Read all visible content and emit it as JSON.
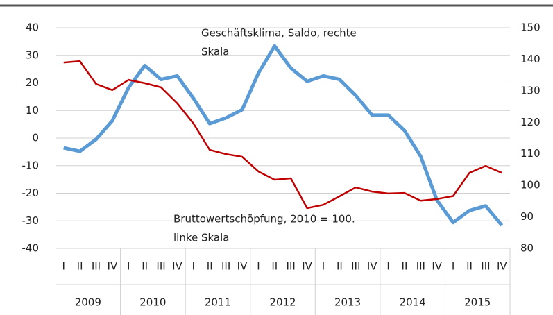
{
  "chart_data": {
    "type": "line",
    "annotations": [
      {
        "lines": [
          "Geschäftsklima, Saldo, rechte",
          "Skala"
        ]
      },
      {
        "lines": [
          "Bruttowertschöpfung, 2010 = 100.",
          "linke Skala"
        ]
      }
    ],
    "quarters": [
      "I",
      "II",
      "III",
      "IV"
    ],
    "years": [
      "2009",
      "2010",
      "2011",
      "2012",
      "2013",
      "2014",
      "2015"
    ],
    "ylim": [
      -40,
      40
    ],
    "yticks": [
      -40,
      -30,
      -20,
      -10,
      0,
      10,
      20,
      30,
      40
    ],
    "y2lim": [
      80,
      150
    ],
    "y2ticks": [
      80,
      90,
      100,
      110,
      120,
      130,
      140,
      150
    ],
    "grid": true,
    "series": [
      {
        "name": "Geschäftsklima, Saldo",
        "color": "#5b9bd5",
        "axis": "y2",
        "values": [
          111.9,
          110.8,
          114.6,
          120.5,
          131,
          138,
          133.6,
          134.7,
          127.6,
          119.6,
          121.4,
          124,
          135.6,
          144.2,
          137.2,
          133,
          134.7,
          133.6,
          128.5,
          122.3,
          122.3,
          117.4,
          109.2,
          95.3,
          88.2,
          92,
          93.5,
          87.3
        ]
      },
      {
        "name": "Bruttowertschöpfung",
        "color": "#c00000",
        "axis": "y",
        "values": [
          27.4,
          27.9,
          19.6,
          17.4,
          21.1,
          19.9,
          18.4,
          12.6,
          5.3,
          -4.3,
          -5.8,
          -6.8,
          -12.1,
          -15.1,
          -14.6,
          -25.4,
          -24.2,
          -21.1,
          -17.9,
          -19.4,
          -20.1,
          -19.9,
          -22.7,
          -22.1,
          -21,
          -12.6,
          -10.1,
          -12.6
        ]
      }
    ]
  }
}
